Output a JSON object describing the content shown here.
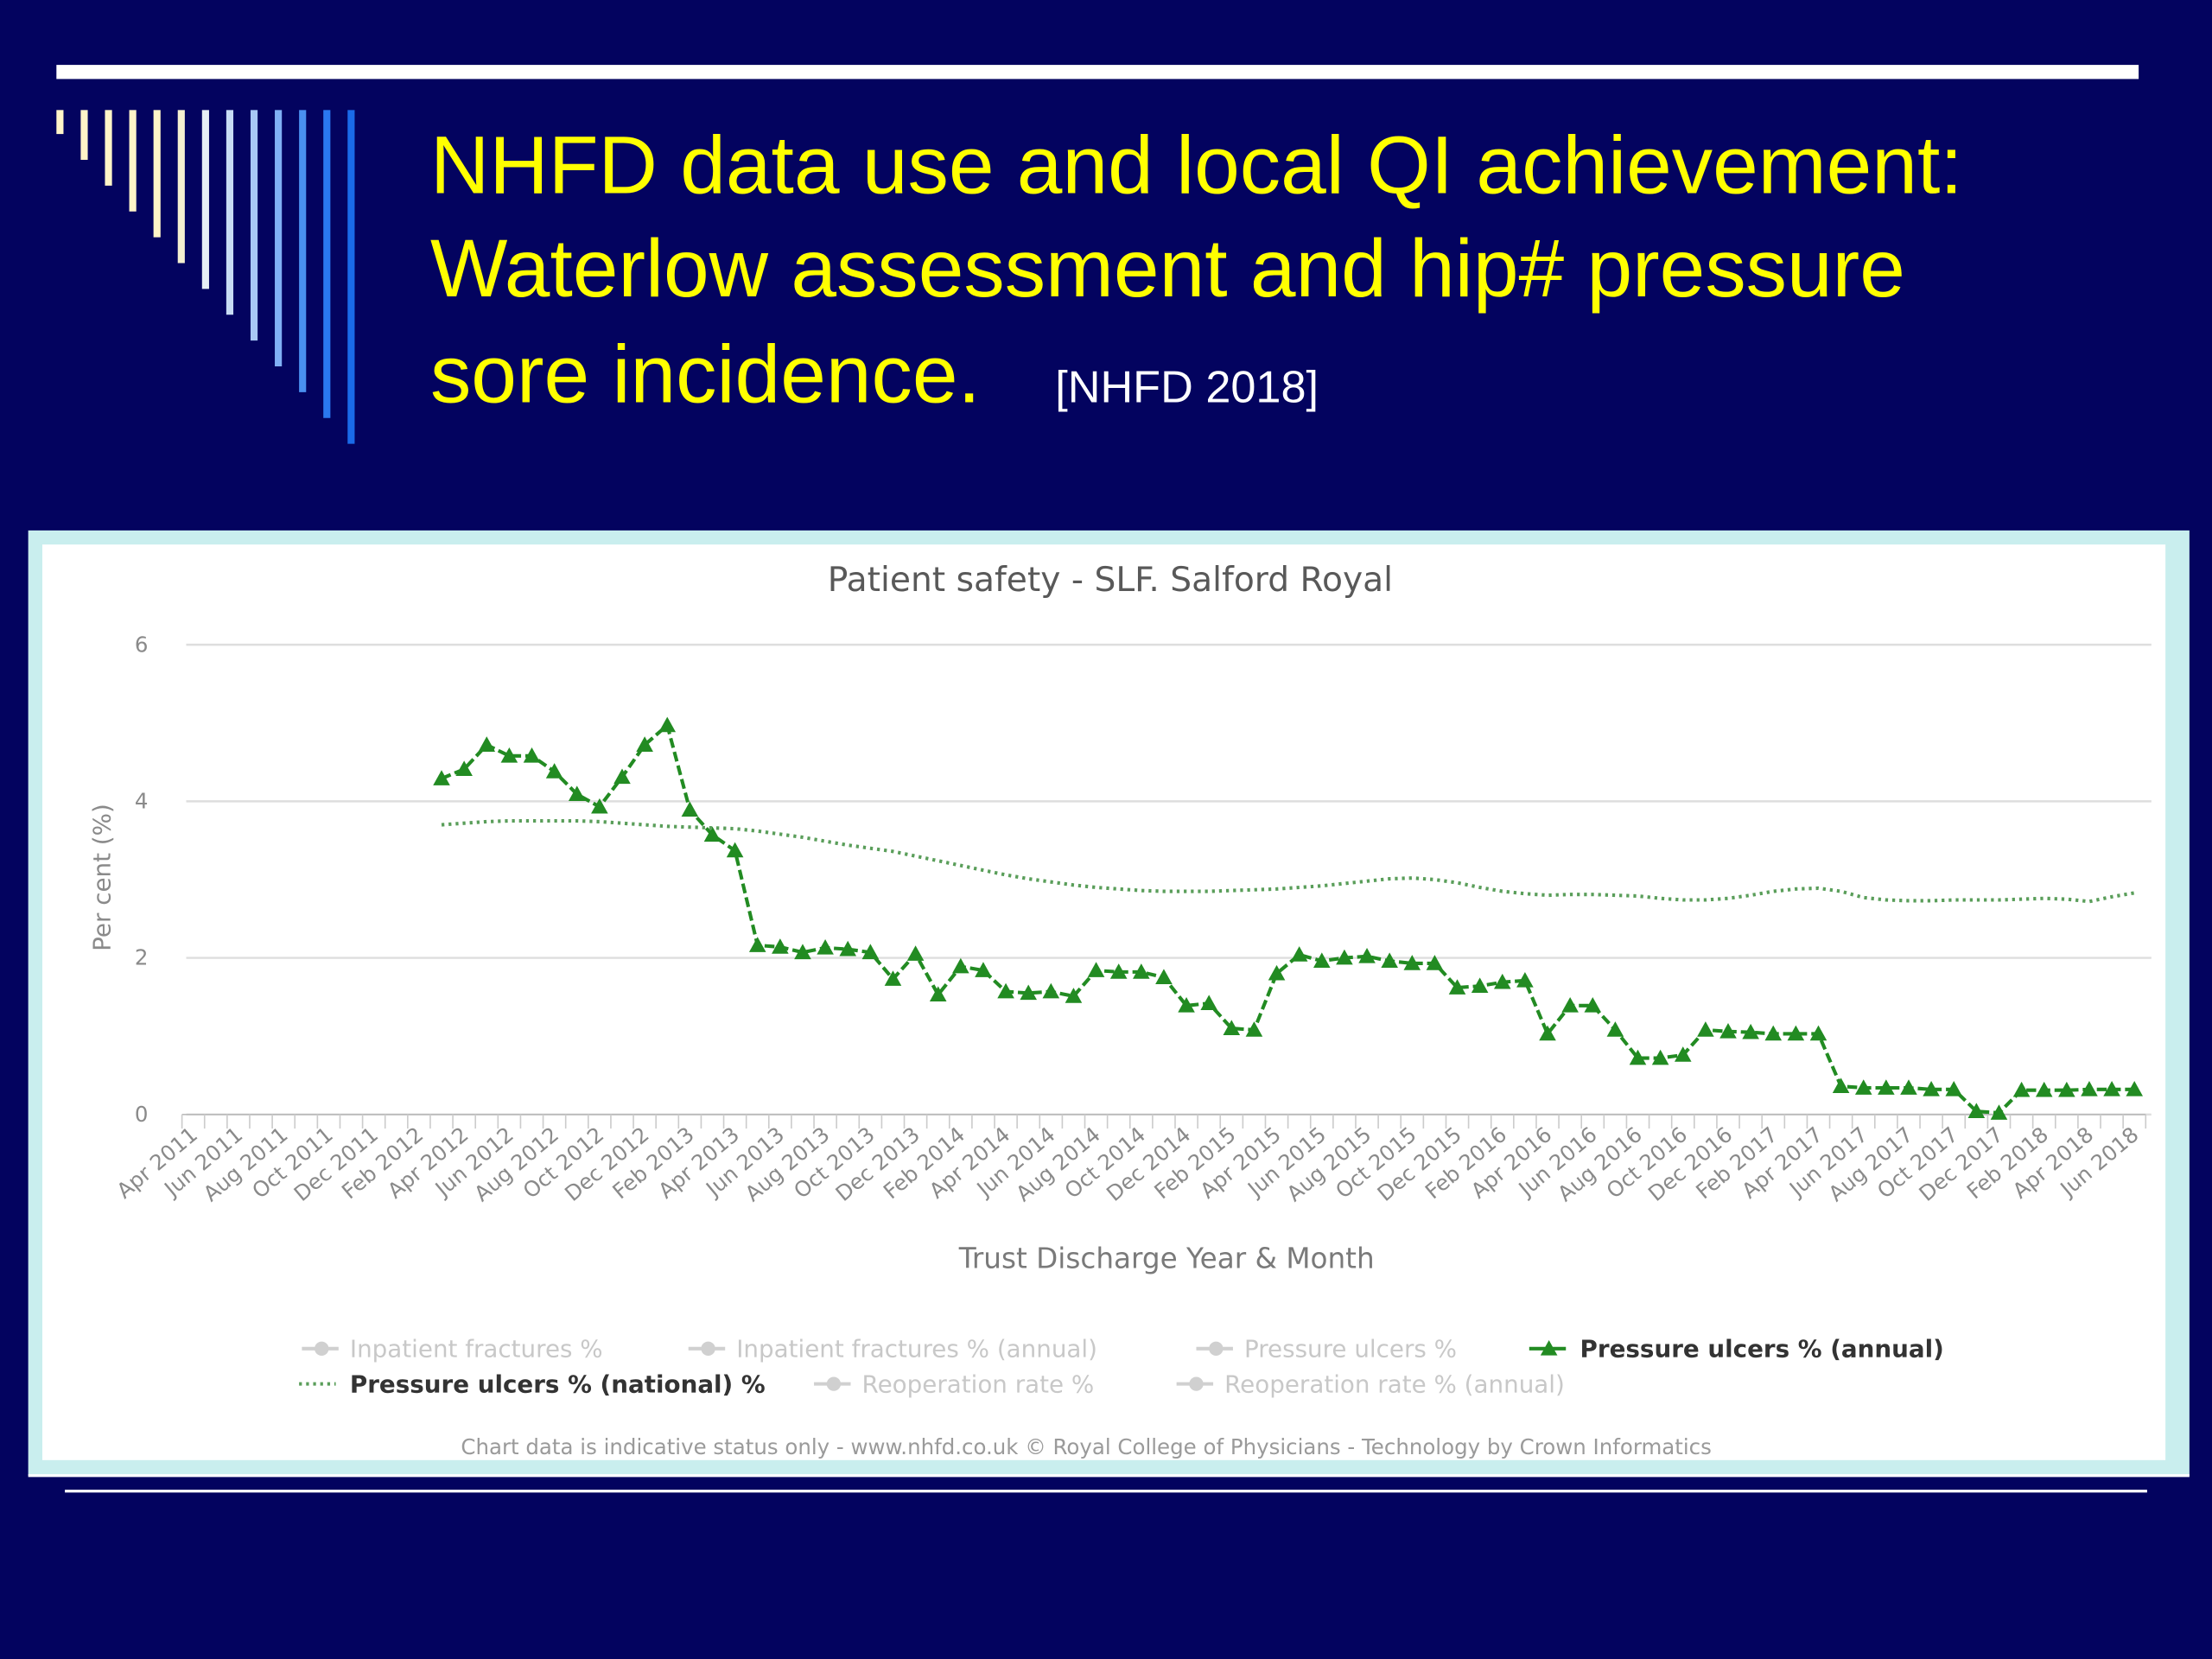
{
  "slide": {
    "title_lines": [
      "NHFD data use and local QI achievement:",
      "Waterlow assessment and hip# pressure",
      "sore incidence."
    ],
    "source": "[NHFD 2018]"
  },
  "chart_data": {
    "type": "line",
    "title": "Patient safety - SLF. Salford Royal",
    "ylabel": "Per cent (%)",
    "xlabel": "Trust Discharge Year & Month",
    "note": "Chart data is indicative status only - www.nhfd.co.uk © Royal College of Physicians - Technology by Crown Informatics",
    "ylim": [
      0,
      6
    ],
    "yticks": [
      0,
      2,
      4,
      6
    ],
    "grid": true,
    "categories": [
      "Apr 2011",
      null,
      "Jun 2011",
      null,
      "Aug 2011",
      null,
      "Oct 2011",
      null,
      "Dec 2011",
      null,
      "Feb 2012",
      null,
      "Apr 2012",
      null,
      "Jun 2012",
      null,
      "Aug 2012",
      null,
      "Oct 2012",
      null,
      "Dec 2012",
      null,
      "Feb 2013",
      null,
      "Apr 2013",
      null,
      "Jun 2013",
      null,
      "Aug 2013",
      null,
      "Oct 2013",
      null,
      "Dec 2013",
      null,
      "Feb 2014",
      null,
      "Apr 2014",
      null,
      "Jun 2014",
      null,
      "Aug 2014",
      null,
      "Oct 2014",
      null,
      "Dec 2014",
      null,
      "Feb 2015",
      null,
      "Apr 2015",
      null,
      "Jun 2015",
      null,
      "Aug 2015",
      null,
      "Oct 2015",
      null,
      "Dec 2015",
      null,
      "Feb 2016",
      null,
      "Apr 2016",
      null,
      "Jun 2016",
      null,
      "Aug 2016",
      null,
      "Oct 2016",
      null,
      "Dec 2016",
      null,
      "Feb 2017",
      null,
      "Apr 2017",
      null,
      "Jun 2017",
      null,
      "Aug 2017",
      null,
      "Oct 2017",
      null,
      "Dec 2017",
      null,
      "Feb 2018",
      null,
      "Apr 2018",
      null,
      "Jun 2018"
    ],
    "series": [
      {
        "name": "Pressure ulcers % (annual)",
        "color": "#228b22",
        "style": "solid",
        "marker": "triangle",
        "values": [
          null,
          null,
          null,
          null,
          null,
          null,
          null,
          null,
          null,
          null,
          null,
          4.29,
          4.41,
          4.72,
          4.58,
          4.58,
          4.38,
          4.09,
          3.93,
          4.31,
          4.72,
          4.97,
          3.89,
          3.57,
          3.37,
          2.16,
          2.14,
          2.07,
          2.13,
          2.11,
          2.07,
          1.73,
          2.05,
          1.53,
          1.89,
          1.84,
          1.57,
          1.55,
          1.57,
          1.51,
          1.84,
          1.82,
          1.82,
          1.75,
          1.39,
          1.42,
          1.1,
          1.08,
          1.8,
          2.04,
          1.96,
          2.0,
          2.02,
          1.96,
          1.93,
          1.93,
          1.62,
          1.64,
          1.69,
          1.71,
          1.03,
          1.39,
          1.39,
          1.08,
          0.72,
          0.72,
          0.76,
          1.08,
          1.06,
          1.05,
          1.03,
          1.03,
          1.03,
          0.36,
          0.34,
          0.34,
          0.34,
          0.32,
          0.32,
          0.04,
          0.02,
          0.31,
          0.31,
          0.31,
          0.32,
          0.32,
          0.32
        ]
      },
      {
        "name": "Pressure ulcers % (national) %",
        "color": "#5a9e5a",
        "style": "dotted",
        "marker": "none",
        "values": [
          null,
          null,
          null,
          null,
          null,
          null,
          null,
          null,
          null,
          null,
          null,
          3.7,
          3.72,
          3.74,
          3.75,
          3.75,
          3.75,
          3.75,
          3.74,
          3.72,
          3.7,
          3.68,
          3.67,
          3.66,
          3.65,
          3.62,
          3.58,
          3.54,
          3.49,
          3.44,
          3.4,
          3.36,
          3.3,
          3.24,
          3.18,
          3.12,
          3.06,
          3.01,
          2.97,
          2.93,
          2.9,
          2.88,
          2.86,
          2.85,
          2.85,
          2.85,
          2.86,
          2.87,
          2.88,
          2.9,
          2.92,
          2.95,
          2.98,
          3.01,
          3.02,
          3.0,
          2.96,
          2.9,
          2.85,
          2.82,
          2.8,
          2.81,
          2.81,
          2.8,
          2.79,
          2.76,
          2.74,
          2.74,
          2.76,
          2.8,
          2.85,
          2.88,
          2.89,
          2.85,
          2.77,
          2.74,
          2.73,
          2.73,
          2.74,
          2.74,
          2.74,
          2.75,
          2.76,
          2.75,
          2.72,
          2.78,
          2.83
        ]
      }
    ],
    "legend_inactive": [
      "Inpatient fractures %",
      "Inpatient fractures % (annual)",
      "Pressure ulcers %",
      "Reoperation rate %",
      "Reoperation rate % (annual)"
    ]
  }
}
